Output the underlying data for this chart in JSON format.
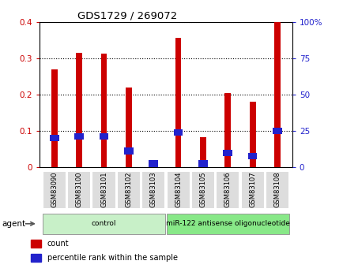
{
  "title": "GDS1729 / 269072",
  "categories": [
    "GSM83090",
    "GSM83100",
    "GSM83101",
    "GSM83102",
    "GSM83103",
    "GSM83104",
    "GSM83105",
    "GSM83106",
    "GSM83107",
    "GSM83108"
  ],
  "count_values": [
    0.27,
    0.315,
    0.313,
    0.22,
    0.01,
    0.355,
    0.082,
    0.205,
    0.18,
    0.4
  ],
  "percentile_values": [
    0.08,
    0.085,
    0.085,
    0.045,
    0.01,
    0.095,
    0.01,
    0.04,
    0.03,
    0.1
  ],
  "bar_color_red": "#CC0000",
  "bar_color_blue": "#2222CC",
  "ylim_left": [
    0,
    0.4
  ],
  "ylim_right": [
    0,
    100
  ],
  "yticks_left": [
    0,
    0.1,
    0.2,
    0.3,
    0.4
  ],
  "yticks_right": [
    0,
    25,
    50,
    75,
    100
  ],
  "ytick_labels_left": [
    "0",
    "0.1",
    "0.2",
    "0.3",
    "0.4"
  ],
  "ytick_labels_right": [
    "0",
    "25",
    "50",
    "75",
    "100%"
  ],
  "left_tick_color": "#CC0000",
  "right_tick_color": "#2222CC",
  "grid_color": "black",
  "agent_groups": [
    {
      "label": "control",
      "start": 0,
      "end": 4,
      "color": "#c8f0c8"
    },
    {
      "label": "miR-122 antisense oligonucleotide",
      "start": 5,
      "end": 9,
      "color": "#88e888"
    }
  ],
  "legend_items": [
    {
      "label": "count",
      "color": "#CC0000"
    },
    {
      "label": "percentile rank within the sample",
      "color": "#2222CC"
    }
  ],
  "bar_width": 0.25,
  "background_color": "#ffffff",
  "plot_bg_color": "#ffffff",
  "xlabel_area_color": "#cccccc",
  "agent_label": "agent"
}
